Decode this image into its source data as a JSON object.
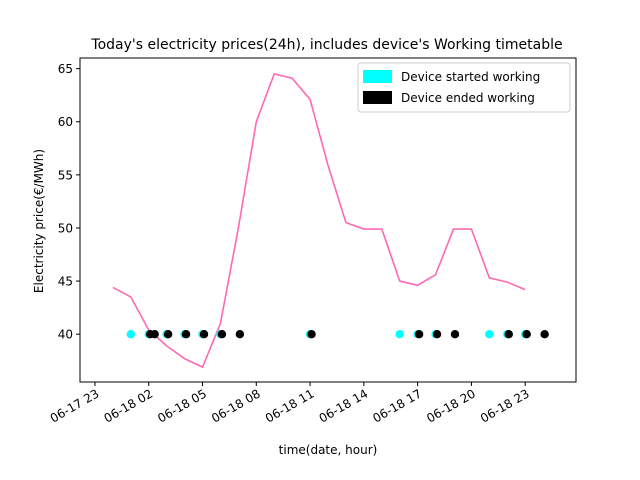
{
  "chart_data": {
    "type": "line",
    "title": "Today's electricity prices(24h), includes device's Working timetable",
    "xlabel": "time(date, hour)",
    "ylabel": "Electricity price(€/MWh)",
    "xlim": [
      "2024-06-17 22:10",
      "2024-06-19 01:50"
    ],
    "ylim": [
      35.5,
      66
    ],
    "y_ticks": [
      40,
      45,
      50,
      55,
      60,
      65
    ],
    "x_ticks": [
      {
        "t": "2024-06-17 23:00",
        "label": "06-17 23"
      },
      {
        "t": "2024-06-18 02:00",
        "label": "06-18 02"
      },
      {
        "t": "2024-06-18 05:00",
        "label": "06-18 05"
      },
      {
        "t": "2024-06-18 08:00",
        "label": "06-18 08"
      },
      {
        "t": "2024-06-18 11:00",
        "label": "06-18 11"
      },
      {
        "t": "2024-06-18 14:00",
        "label": "06-18 14"
      },
      {
        "t": "2024-06-18 17:00",
        "label": "06-18 17"
      },
      {
        "t": "2024-06-18 20:00",
        "label": "06-18 20"
      },
      {
        "t": "2024-06-18 23:00",
        "label": "06-18 23"
      }
    ],
    "series": [
      {
        "kind": "line",
        "color": "#ff69b4",
        "points": [
          [
            "2024-06-18 00:00",
            44.4
          ],
          [
            "2024-06-18 01:00",
            43.5
          ],
          [
            "2024-06-18 02:00",
            40.4
          ],
          [
            "2024-06-18 03:00",
            38.9
          ],
          [
            "2024-06-18 04:00",
            37.7
          ],
          [
            "2024-06-18 05:00",
            36.9
          ],
          [
            "2024-06-18 06:00",
            41.0
          ],
          [
            "2024-06-18 07:00",
            50.0
          ],
          [
            "2024-06-18 08:00",
            60.0
          ],
          [
            "2024-06-18 09:00",
            64.5
          ],
          [
            "2024-06-18 10:00",
            64.1
          ],
          [
            "2024-06-18 11:00",
            62.1
          ],
          [
            "2024-06-18 12:00",
            55.9
          ],
          [
            "2024-06-18 13:00",
            50.5
          ],
          [
            "2024-06-18 14:00",
            49.9
          ],
          [
            "2024-06-18 15:00",
            49.9
          ],
          [
            "2024-06-18 16:00",
            45.0
          ],
          [
            "2024-06-18 17:00",
            44.6
          ],
          [
            "2024-06-18 18:00",
            45.6
          ],
          [
            "2024-06-18 19:00",
            49.9
          ],
          [
            "2024-06-18 20:00",
            49.9
          ],
          [
            "2024-06-18 21:00",
            45.3
          ],
          [
            "2024-06-18 22:00",
            44.9
          ],
          [
            "2024-06-18 23:00",
            44.2
          ]
        ]
      },
      {
        "name": "Device started working",
        "kind": "scatter",
        "color": "#00ffff",
        "y": 40,
        "x": [
          "2024-06-18 01:00",
          "2024-06-18 02:00",
          "2024-06-18 03:00",
          "2024-06-18 04:00",
          "2024-06-18 05:00",
          "2024-06-18 06:00",
          "2024-06-18 11:00",
          "2024-06-18 16:00",
          "2024-06-18 17:00",
          "2024-06-18 18:00",
          "2024-06-18 21:00",
          "2024-06-18 22:00",
          "2024-06-18 23:00"
        ]
      },
      {
        "name": "Device ended working",
        "kind": "scatter",
        "color": "#000000",
        "y": 40,
        "x": [
          "2024-06-18 02:05",
          "2024-06-18 02:20",
          "2024-06-18 03:05",
          "2024-06-18 04:05",
          "2024-06-18 05:05",
          "2024-06-18 06:05",
          "2024-06-18 07:05",
          "2024-06-18 11:05",
          "2024-06-18 17:05",
          "2024-06-18 18:05",
          "2024-06-18 19:05",
          "2024-06-18 22:05",
          "2024-06-18 23:05",
          "2024-06-19 00:05"
        ]
      }
    ],
    "legend": {
      "placement": "top-right",
      "entries": [
        {
          "label": "Device started working",
          "color": "#00ffff"
        },
        {
          "label": "Device ended working",
          "color": "#000000"
        }
      ]
    },
    "grid": false
  }
}
